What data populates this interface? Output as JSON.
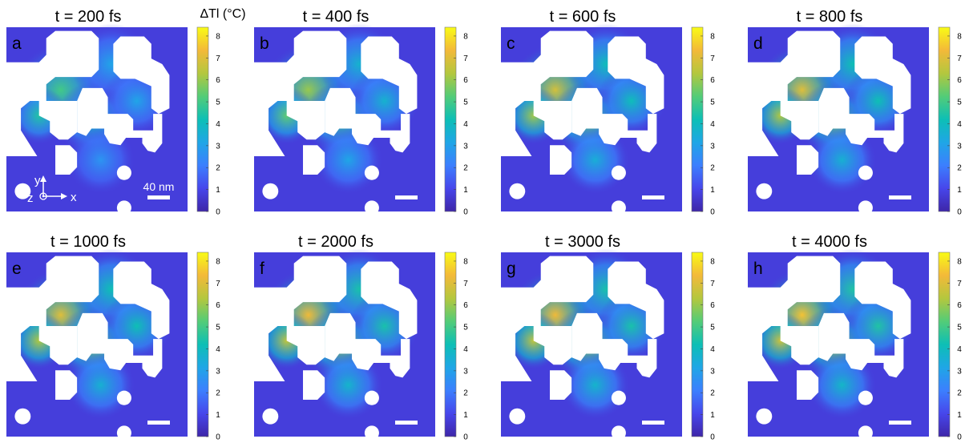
{
  "chart_data": {
    "type": "heatmap",
    "quantity_label": "ΔTl (°C)",
    "colorscale": [
      "#3e26a8",
      "#4746eb",
      "#3c7ffe",
      "#1fa6e6",
      "#0dbfb5",
      "#53cc78",
      "#b4c73e",
      "#f3b939",
      "#f9fb15"
    ],
    "colorbar": {
      "min": 0,
      "max": 8.4,
      "ticks": [
        0,
        1,
        2,
        3,
        4,
        5,
        6,
        7,
        8
      ]
    },
    "scalebar_label": "40 nm",
    "axes_labels": {
      "x": "x",
      "y": "y",
      "z": "z"
    },
    "panels": [
      {
        "letter": "a",
        "title": "t = 200 fs",
        "peak": 5.0,
        "background": 0.8
      },
      {
        "letter": "b",
        "title": "t = 400 fs",
        "peak": 6.0,
        "background": 0.8
      },
      {
        "letter": "c",
        "title": "t = 600 fs",
        "peak": 6.8,
        "background": 0.8
      },
      {
        "letter": "d",
        "title": "t = 800 fs",
        "peak": 7.0,
        "background": 0.8
      },
      {
        "letter": "e",
        "title": "t = 1000 fs",
        "peak": 7.0,
        "background": 0.8
      },
      {
        "letter": "f",
        "title": "t = 2000 fs",
        "peak": 7.3,
        "background": 0.8
      },
      {
        "letter": "g",
        "title": "t = 3000 fs",
        "peak": 7.3,
        "background": 0.8
      },
      {
        "letter": "h",
        "title": "t = 4000 fs",
        "peak": 7.5,
        "background": 0.8
      }
    ]
  }
}
